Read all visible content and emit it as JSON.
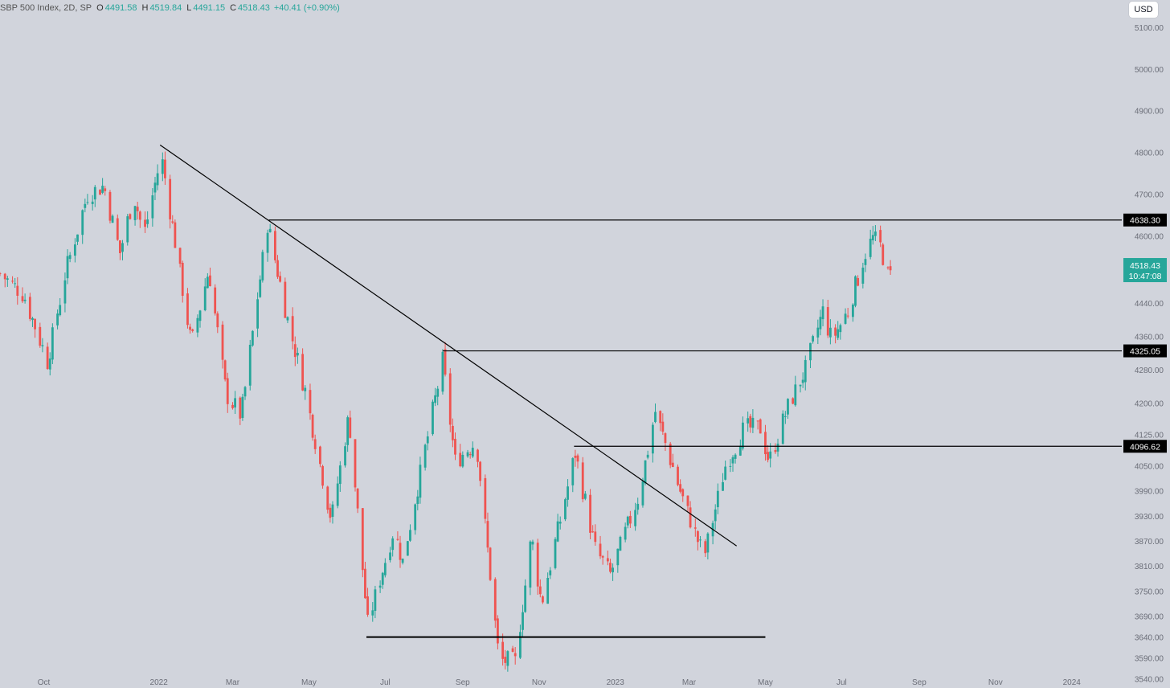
{
  "header": {
    "symbol_title": "SBP 500 Index, 2D, SP",
    "open_label": "O",
    "open_value": "4491.58",
    "high_label": "H",
    "high_value": "4519.84",
    "low_label": "L",
    "low_value": "4491.15",
    "close_label": "C",
    "close_value": "4518.43",
    "change": "+40.41 (+0.90%)",
    "currency": "USD"
  },
  "colors": {
    "background": "#d1d4dc",
    "up": "#26a69a",
    "down": "#ef5350",
    "line": "#000000",
    "tag_bg": "#000000",
    "last_price_bg": "#26a69a"
  },
  "chart_data": {
    "type": "candlestick",
    "title": "SBP 500 Index, 2D, SP",
    "x_type": "date",
    "x_range": [
      "2021-08-27",
      "2024-02-10"
    ],
    "ylim": [
      3518,
      5165
    ],
    "grid": false,
    "legend": "none",
    "y_ticks": [
      3540,
      3590,
      3640,
      3690,
      3750,
      3810,
      3870,
      3930,
      3990,
      4050,
      4125,
      4200,
      4280,
      4360,
      4440,
      4600,
      4700,
      4800,
      4900,
      5000,
      5100
    ],
    "y_tick_labels": [
      "3540.00",
      "3590.00",
      "3640.00",
      "3690.00",
      "3750.00",
      "3810.00",
      "3870.00",
      "3930.00",
      "3990.00",
      "4050.00",
      "4125.00",
      "4200.00",
      "4280.00",
      "4360.00",
      "4440.00",
      "4600.00",
      "4700.00",
      "4800.00",
      "4900.00",
      "5000.00",
      "5100.00"
    ],
    "x_ticks": [
      {
        "label": "Oct",
        "date": "2021-10-01"
      },
      {
        "label": "2022",
        "date": "2022-01-01"
      },
      {
        "label": "Mar",
        "date": "2022-03-01"
      },
      {
        "label": "May",
        "date": "2022-05-01"
      },
      {
        "label": "Jul",
        "date": "2022-07-01"
      },
      {
        "label": "Sep",
        "date": "2022-09-01"
      },
      {
        "label": "Nov",
        "date": "2022-11-01"
      },
      {
        "label": "2023",
        "date": "2023-01-01"
      },
      {
        "label": "Mar",
        "date": "2023-03-01"
      },
      {
        "label": "May",
        "date": "2023-05-01"
      },
      {
        "label": "Jul",
        "date": "2023-07-01"
      },
      {
        "label": "Sep",
        "date": "2023-09-01"
      },
      {
        "label": "Nov",
        "date": "2023-11-01"
      },
      {
        "label": "2024",
        "date": "2024-01-01"
      }
    ],
    "anchors": [
      {
        "date": "2021-08-27",
        "close": 4510
      },
      {
        "date": "2021-09-15",
        "close": 4460
      },
      {
        "date": "2021-10-04",
        "close": 4300
      },
      {
        "date": "2021-10-19",
        "close": 4520
      },
      {
        "date": "2021-11-05",
        "close": 4700
      },
      {
        "date": "2021-11-18",
        "close": 4720
      },
      {
        "date": "2021-12-01",
        "close": 4560
      },
      {
        "date": "2021-12-12",
        "close": 4700
      },
      {
        "date": "2021-12-20",
        "close": 4600
      },
      {
        "date": "2022-01-03",
        "close": 4795
      },
      {
        "date": "2022-01-27",
        "close": 4340
      },
      {
        "date": "2022-02-10",
        "close": 4520
      },
      {
        "date": "2022-02-24",
        "close": 4220
      },
      {
        "date": "2022-03-08",
        "close": 4170
      },
      {
        "date": "2022-03-29",
        "close": 4630
      },
      {
        "date": "2022-04-14",
        "close": 4400
      },
      {
        "date": "2022-04-28",
        "close": 4230
      },
      {
        "date": "2022-05-19",
        "close": 3920
      },
      {
        "date": "2022-06-02",
        "close": 4170
      },
      {
        "date": "2022-06-17",
        "close": 3670
      },
      {
        "date": "2022-07-08",
        "close": 3900
      },
      {
        "date": "2022-07-15",
        "close": 3820
      },
      {
        "date": "2022-08-16",
        "close": 4300
      },
      {
        "date": "2022-08-26",
        "close": 4060
      },
      {
        "date": "2022-09-12",
        "close": 4110
      },
      {
        "date": "2022-09-30",
        "close": 3585
      },
      {
        "date": "2022-10-13",
        "close": 3580
      },
      {
        "date": "2022-10-26",
        "close": 3880
      },
      {
        "date": "2022-11-03",
        "close": 3720
      },
      {
        "date": "2022-11-30",
        "close": 4080
      },
      {
        "date": "2022-12-16",
        "close": 3850
      },
      {
        "date": "2022-12-28",
        "close": 3790
      },
      {
        "date": "2023-01-20",
        "close": 3980
      },
      {
        "date": "2023-02-02",
        "close": 4180
      },
      {
        "date": "2023-02-24",
        "close": 3970
      },
      {
        "date": "2023-03-13",
        "close": 3830
      },
      {
        "date": "2023-03-30",
        "close": 4050
      },
      {
        "date": "2023-04-14",
        "close": 4140
      },
      {
        "date": "2023-04-27",
        "close": 4140
      },
      {
        "date": "2023-05-04",
        "close": 4060
      },
      {
        "date": "2023-05-19",
        "close": 4190
      },
      {
        "date": "2023-06-02",
        "close": 4280
      },
      {
        "date": "2023-06-16",
        "close": 4420
      },
      {
        "date": "2023-06-23",
        "close": 4350
      },
      {
        "date": "2023-07-06",
        "close": 4420
      },
      {
        "date": "2023-07-20",
        "close": 4560
      },
      {
        "date": "2023-07-26",
        "close": 4595
      },
      {
        "date": "2023-08-01",
        "close": 4575
      },
      {
        "date": "2023-08-07",
        "close": 4505
      },
      {
        "date": "2023-08-09",
        "close": 4518
      }
    ],
    "drawings": [
      {
        "type": "trendline",
        "from": {
          "date": "2022-01-02",
          "price": 4818
        },
        "to": {
          "date": "2023-04-08",
          "price": 3858
        }
      },
      {
        "type": "horizontal_ray",
        "price": 4638.3,
        "from_date": "2022-03-30",
        "tag": "4638.30"
      },
      {
        "type": "horizontal_ray",
        "price": 4325.05,
        "from_date": "2022-08-16",
        "tag": "4325.05"
      },
      {
        "type": "horizontal_ray",
        "price": 4096.62,
        "from_date": "2022-11-29",
        "tag": "4096.62"
      },
      {
        "type": "segment",
        "price": 3640,
        "from_date": "2022-06-16",
        "to_date": "2023-05-01"
      }
    ],
    "last_price": {
      "value": "4518.43",
      "countdown": "10:47:08"
    }
  }
}
